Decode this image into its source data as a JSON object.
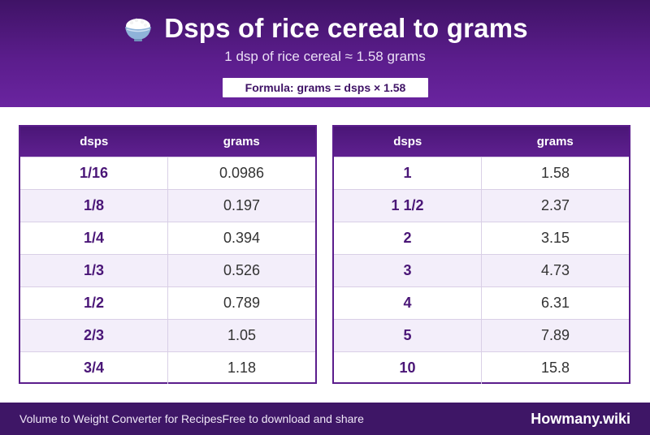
{
  "header": {
    "title": "Dsps of rice cereal to grams",
    "subtitle": "1 dsp of rice cereal ≈ 1.58 grams",
    "formula": "Formula: grams = dsps × 1.58",
    "icon": "rice-bowl-icon"
  },
  "tables": {
    "left": {
      "col1": "dsps",
      "col2": "grams",
      "rows": [
        [
          "1/16",
          "0.0986"
        ],
        [
          "1/8",
          "0.197"
        ],
        [
          "1/4",
          "0.394"
        ],
        [
          "1/3",
          "0.526"
        ],
        [
          "1/2",
          "0.789"
        ],
        [
          "2/3",
          "1.05"
        ],
        [
          "3/4",
          "1.18"
        ]
      ]
    },
    "right": {
      "col1": "dsps",
      "col2": "grams",
      "rows": [
        [
          "1",
          "1.58"
        ],
        [
          "1 1/2",
          "2.37"
        ],
        [
          "2",
          "3.15"
        ],
        [
          "3",
          "4.73"
        ],
        [
          "4",
          "6.31"
        ],
        [
          "5",
          "7.89"
        ],
        [
          "10",
          "15.8"
        ]
      ]
    }
  },
  "footer": {
    "left_text": "Volume to Weight Converter for Recipes",
    "middle_text": "Free to download and share",
    "brand": "Howmany.wiki"
  },
  "colors": {
    "primary": "#5b1d8c",
    "header_dark": "#3f1366",
    "row_alt": "#f3eefa"
  }
}
